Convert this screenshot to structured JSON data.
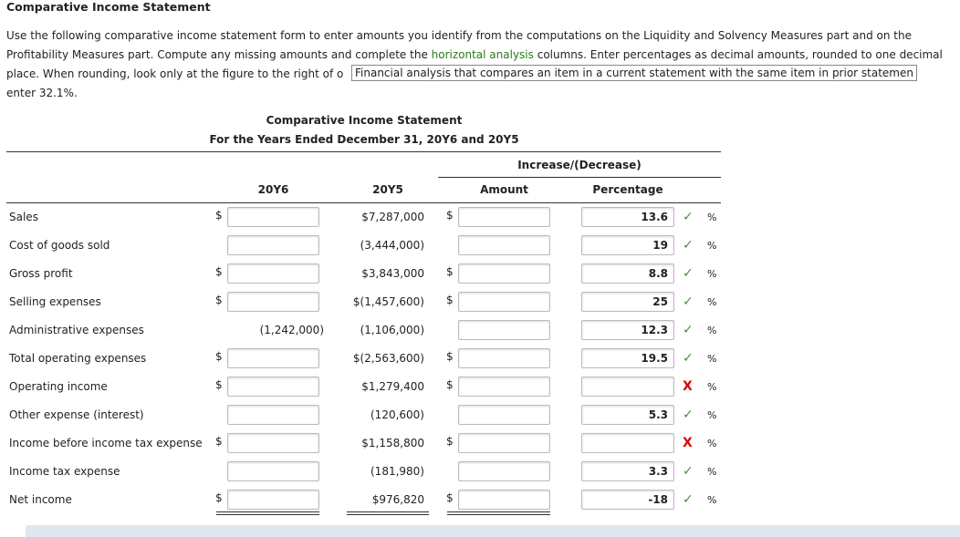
{
  "header": {
    "title": "Comparative Income Statement"
  },
  "instructions": {
    "line1": "Use the following comparative income statement form to enter amounts you identify from the computations on the Liquidity and Solvency Measures part and on the",
    "line2_before": "Profitability Measures part. Compute any missing amounts and complete the ",
    "link": "horizontal analysis",
    "line2_after": " columns. Enter percentages as decimal amounts, rounded to one decimal",
    "line3": "place. When rounding, look only at the figure to the right of o",
    "tooltip": "Financial analysis that compares an item in a current statement with the same item in prior statemen",
    "line4": "enter 32.1%."
  },
  "statement": {
    "title": "Comparative Income Statement",
    "subtitle": "For the Years Ended December 31, 20Y6 and 20Y5",
    "group_header": "Increase/(Decrease)",
    "columns": [
      "20Y6",
      "20Y5",
      "Amount",
      "Percentage"
    ],
    "currency": "$",
    "percent_unit": "%",
    "marks": {
      "correct": {
        "symbol": "✓",
        "color": "#3a9a2a"
      },
      "incorrect": {
        "symbol": "X",
        "color": "#e00000"
      }
    },
    "rows": [
      {
        "label": "Sales",
        "dollar_current": true,
        "prior": "$7,287,000",
        "dollar_amount": true,
        "percentage": "13.6",
        "check": "correct"
      },
      {
        "label": "Cost of goods sold",
        "dollar_current": false,
        "prior": "(3,444,000)",
        "dollar_amount": false,
        "percentage": "19",
        "check": "correct"
      },
      {
        "label": "Gross profit",
        "dollar_current": true,
        "prior": "$3,843,000",
        "dollar_amount": true,
        "percentage": "8.8",
        "check": "correct"
      },
      {
        "label": "Selling expenses",
        "dollar_current": true,
        "prior": "$(1,457,600)",
        "dollar_amount": true,
        "percentage": "25",
        "check": "correct"
      },
      {
        "label": "Administrative expenses",
        "dollar_current": false,
        "current": "(1,242,000)",
        "prior": "(1,106,000)",
        "dollar_amount": false,
        "percentage": "12.3",
        "check": "correct"
      },
      {
        "label": "Total operating expenses",
        "dollar_current": true,
        "prior": "$(2,563,600)",
        "dollar_amount": true,
        "percentage": "19.5",
        "check": "correct"
      },
      {
        "label": "Operating income",
        "dollar_current": true,
        "prior": "$1,279,400",
        "dollar_amount": true,
        "check": "incorrect"
      },
      {
        "label": "Other expense (interest)",
        "dollar_current": false,
        "prior": "(120,600)",
        "dollar_amount": false,
        "percentage": "5.3",
        "check": "correct"
      },
      {
        "label": "Income before income tax expense",
        "dollar_current": true,
        "prior": "$1,158,800",
        "dollar_amount": true,
        "check": "incorrect"
      },
      {
        "label": "Income tax expense",
        "dollar_current": false,
        "prior": "(181,980)",
        "dollar_amount": false,
        "percentage": "3.3",
        "check": "correct"
      },
      {
        "label": "Net income",
        "dollar_current": true,
        "prior": "$976,820",
        "dollar_amount": true,
        "percentage": "-18",
        "check": "correct"
      }
    ]
  }
}
